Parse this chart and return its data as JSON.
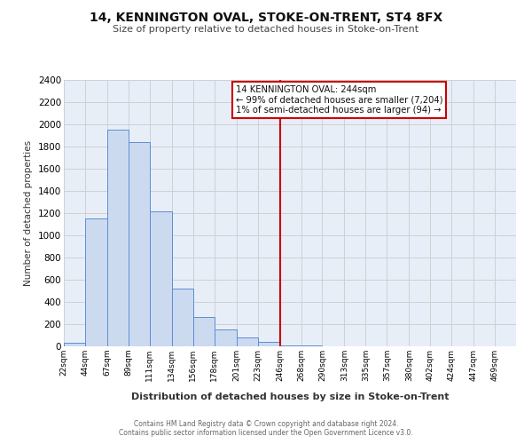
{
  "title": "14, KENNINGTON OVAL, STOKE-ON-TRENT, ST4 8FX",
  "subtitle": "Size of property relative to detached houses in Stoke-on-Trent",
  "xlabel": "Distribution of detached houses by size in Stoke-on-Trent",
  "ylabel": "Number of detached properties",
  "bar_values": [
    30,
    1150,
    1950,
    1840,
    1220,
    520,
    265,
    150,
    80,
    40,
    10,
    5,
    3,
    1,
    1,
    1,
    1,
    1,
    1,
    1,
    1
  ],
  "bin_edges": [
    22,
    44,
    67,
    89,
    111,
    134,
    156,
    178,
    201,
    223,
    246,
    268,
    290,
    313,
    335,
    357,
    380,
    402,
    424,
    447,
    469,
    491
  ],
  "xtick_labels": [
    "22sqm",
    "44sqm",
    "67sqm",
    "89sqm",
    "111sqm",
    "134sqm",
    "156sqm",
    "178sqm",
    "201sqm",
    "223sqm",
    "246sqm",
    "268sqm",
    "290sqm",
    "313sqm",
    "335sqm",
    "357sqm",
    "380sqm",
    "402sqm",
    "424sqm",
    "447sqm",
    "469sqm"
  ],
  "xtick_positions": [
    22,
    44,
    67,
    89,
    111,
    134,
    156,
    178,
    201,
    223,
    246,
    268,
    290,
    313,
    335,
    357,
    380,
    402,
    424,
    447,
    469
  ],
  "ylim": [
    0,
    2400
  ],
  "xlim": [
    22,
    491
  ],
  "yticks": [
    0,
    200,
    400,
    600,
    800,
    1000,
    1200,
    1400,
    1600,
    1800,
    2000,
    2200,
    2400
  ],
  "bar_fill_color": "#ccdaf0",
  "bar_edge_color": "#5b8dd4",
  "grid_color": "#d0d0d0",
  "bg_color": "#e8eef8",
  "vline_x": 246,
  "vline_color": "#cc0000",
  "annotation_text": "14 KENNINGTON OVAL: 244sqm\n← 99% of detached houses are smaller (7,204)\n1% of semi-detached houses are larger (94) →",
  "footer_line1": "Contains HM Land Registry data © Crown copyright and database right 2024.",
  "footer_line2": "Contains public sector information licensed under the Open Government Licence v3.0."
}
